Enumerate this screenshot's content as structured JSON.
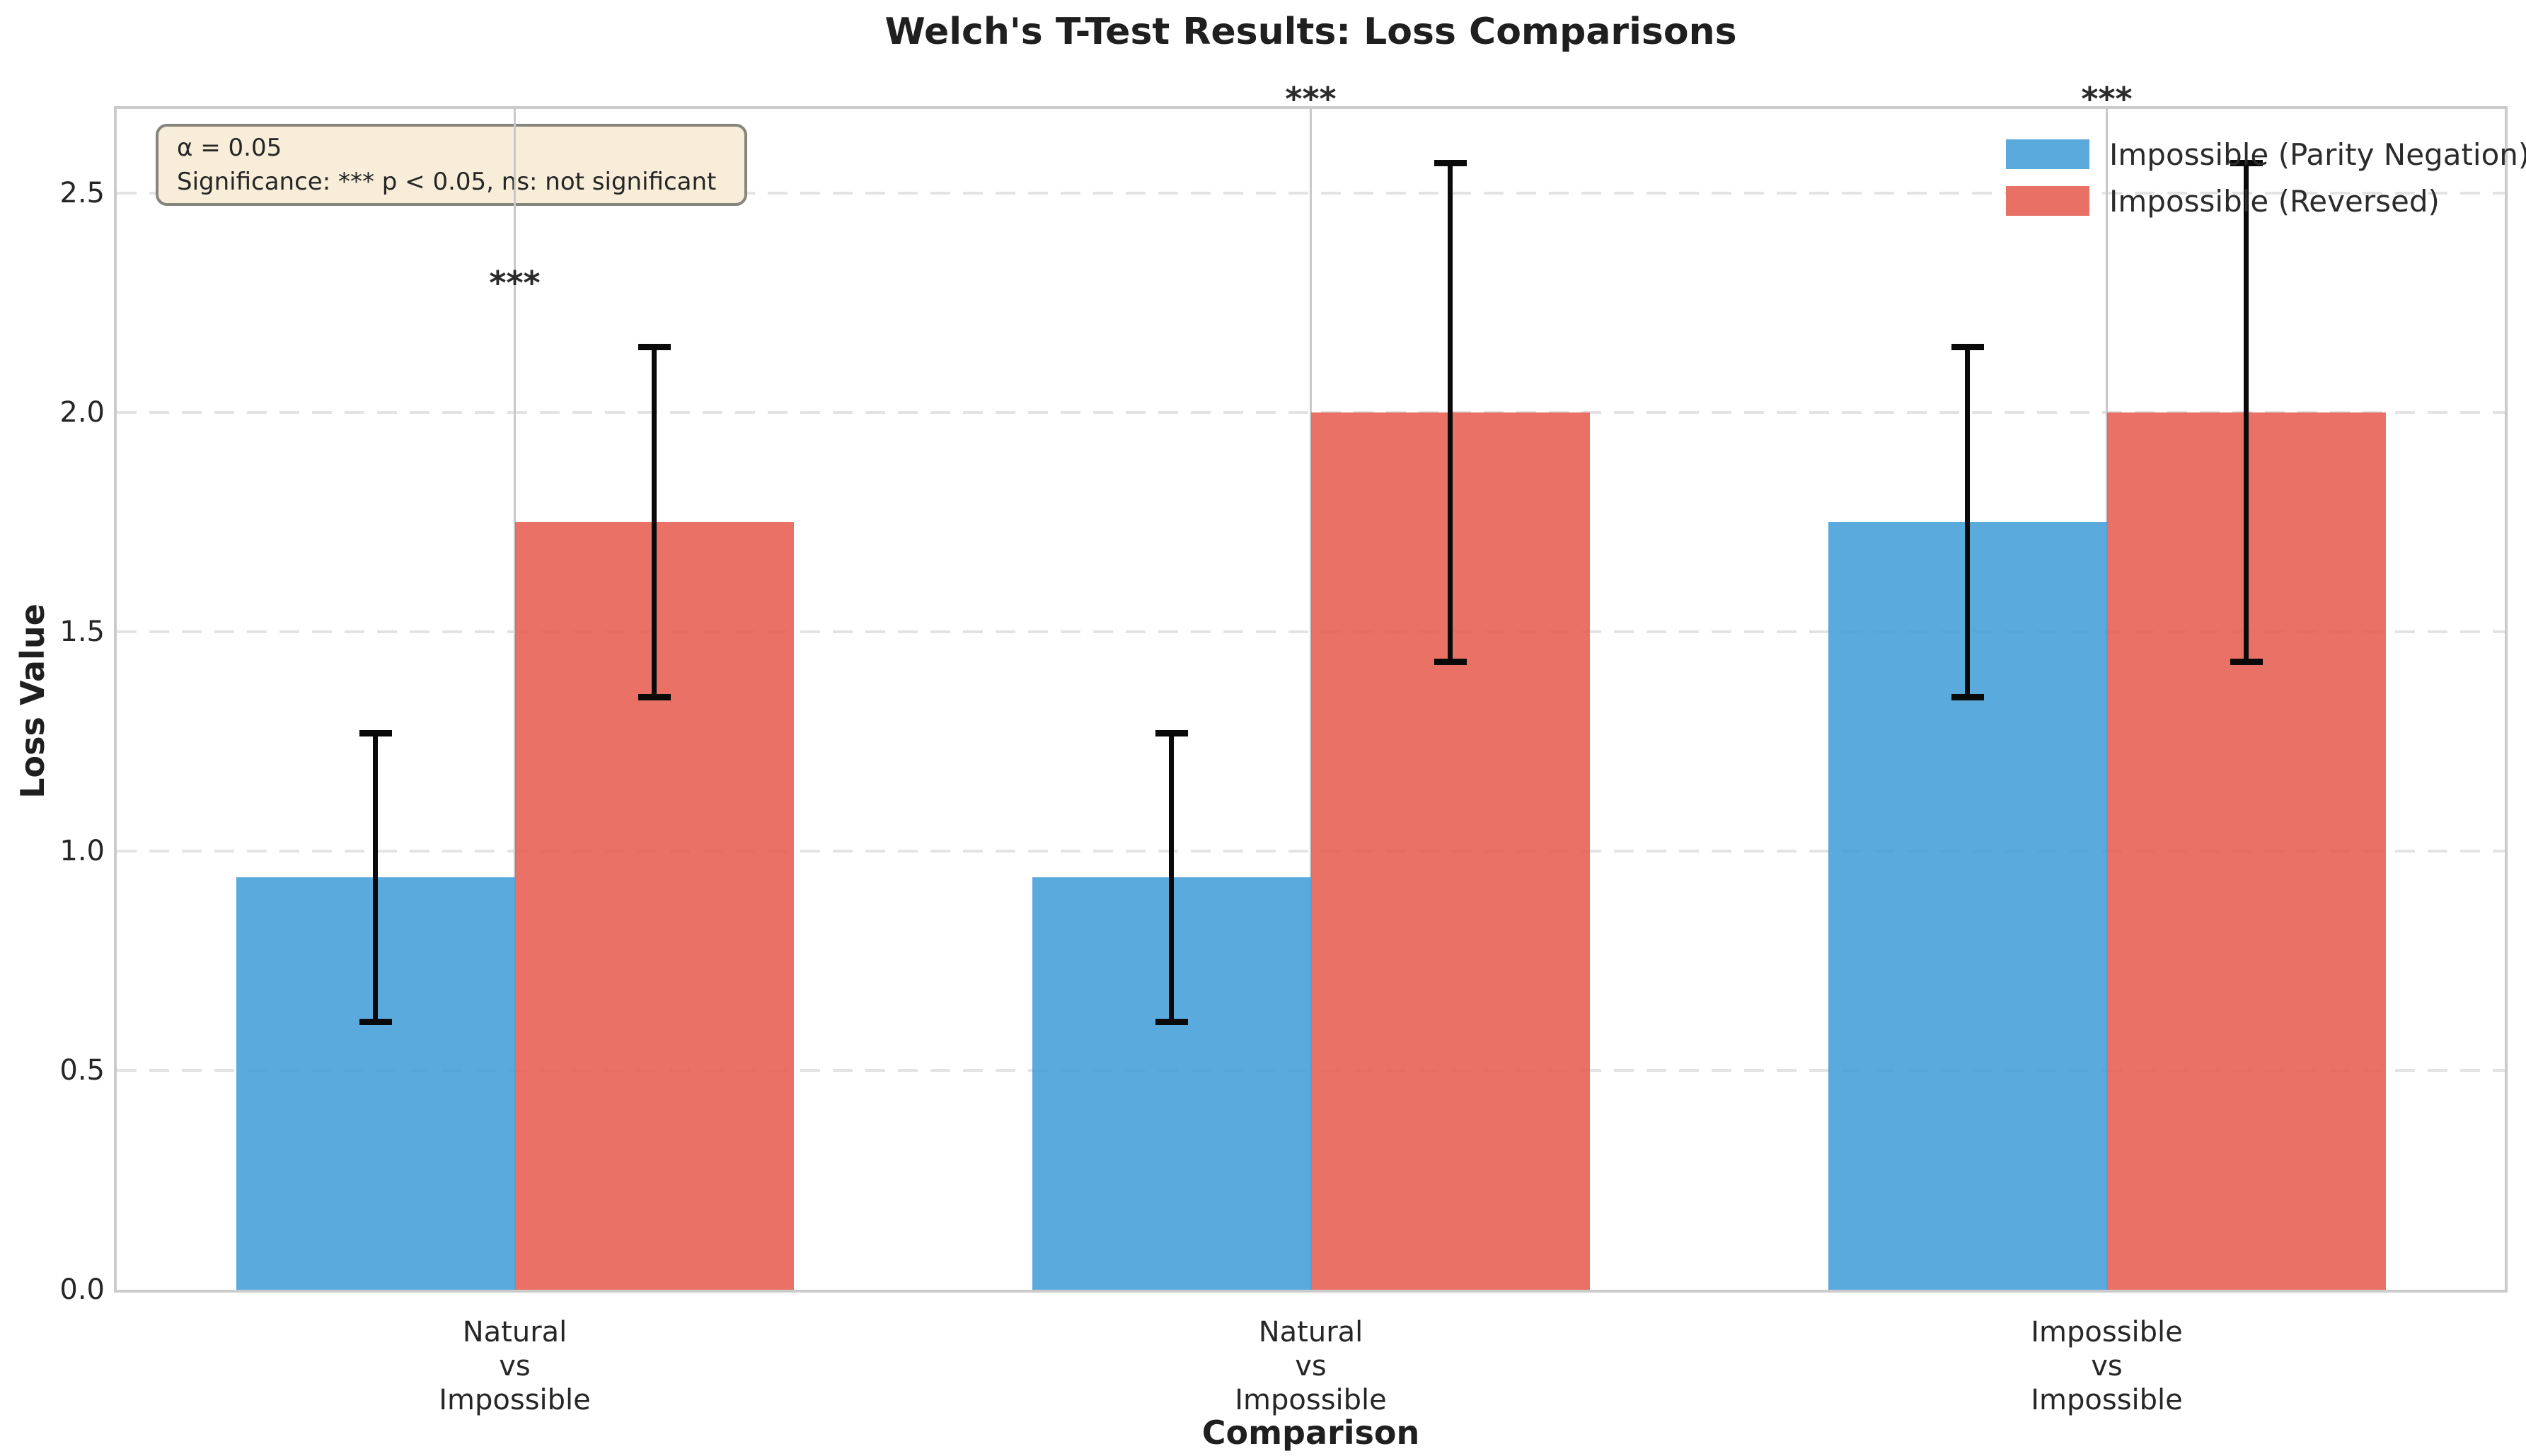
{
  "chart_data": {
    "type": "bar",
    "title": "Welch's T-Test Results: Loss Comparisons",
    "xlabel": "Comparison",
    "ylabel": "Loss Value",
    "categories": [
      "Natural\nvs\nImpossible",
      "Natural\nvs\nImpossible",
      "Impossible\nvs\nImpossible"
    ],
    "series": [
      {
        "name": "Impossible (Parity Negation)",
        "color": "#5AAADE",
        "color_rgba": "rgba(68,158,217,0.88)",
        "values": [
          0.94,
          0.94,
          1.75
        ],
        "errors": [
          0.33,
          0.33,
          0.4
        ]
      },
      {
        "name": "Impossible (Reversed)",
        "color": "#E97065",
        "color_rgba": "rgba(230,93,80,0.88)",
        "values": [
          1.75,
          2.0,
          2.0
        ],
        "errors": [
          0.4,
          0.57,
          0.57
        ]
      }
    ],
    "significance_labels": [
      "***",
      "***",
      "***"
    ],
    "yticks": [
      0.0,
      0.5,
      1.0,
      1.5,
      2.0,
      2.5
    ],
    "ylim": [
      0,
      2.69
    ],
    "grid": {
      "horizontal": "dashed light gray every 0.5",
      "vertical": "solid light gray at category centers"
    },
    "legend_position": "upper right",
    "error_bar_color": "#0a0a0a",
    "annotation": {
      "line1": "α = 0.05",
      "line2": "Significance: *** p < 0.05, ns: not significant"
    }
  }
}
